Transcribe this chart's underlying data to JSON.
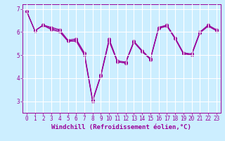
{
  "xlabel": "Windchill (Refroidissement éolien,°C)",
  "ylabel": "",
  "bg_color": "#cceeff",
  "line_color": "#990099",
  "grid_color": "#ffffff",
  "ylim": [
    2.5,
    7.2
  ],
  "xlim": [
    -0.5,
    23.5
  ],
  "yticks": [
    3,
    4,
    5,
    6,
    7
  ],
  "xticks": [
    0,
    1,
    2,
    3,
    4,
    5,
    6,
    7,
    8,
    9,
    10,
    11,
    12,
    13,
    14,
    15,
    16,
    17,
    18,
    19,
    20,
    21,
    22,
    23
  ],
  "series": [
    [
      6.9,
      6.05,
      6.3,
      6.2,
      6.1,
      5.65,
      5.7,
      5.1,
      3.05,
      4.15,
      5.7,
      4.75,
      4.7,
      5.6,
      5.2,
      4.85,
      6.2,
      6.3,
      5.75,
      5.1,
      5.05,
      6.0,
      6.3,
      6.1
    ],
    [
      6.9,
      6.05,
      6.3,
      6.15,
      6.05,
      5.62,
      5.65,
      5.05,
      3.02,
      4.12,
      5.65,
      4.72,
      4.67,
      5.57,
      5.17,
      4.82,
      6.17,
      6.27,
      5.72,
      5.07,
      5.02,
      5.97,
      6.27,
      6.07
    ],
    [
      6.9,
      6.05,
      6.28,
      6.1,
      6.0,
      5.6,
      5.6,
      5.0,
      3.0,
      4.1,
      5.6,
      4.7,
      4.65,
      5.55,
      5.15,
      4.8,
      6.15,
      6.25,
      5.7,
      5.05,
      5.0,
      5.95,
      6.25,
      6.05
    ]
  ],
  "marker": "D",
  "markersize": 2,
  "linewidth": 0.8,
  "tick_fontsize": 5.5,
  "xlabel_fontsize": 6.5
}
